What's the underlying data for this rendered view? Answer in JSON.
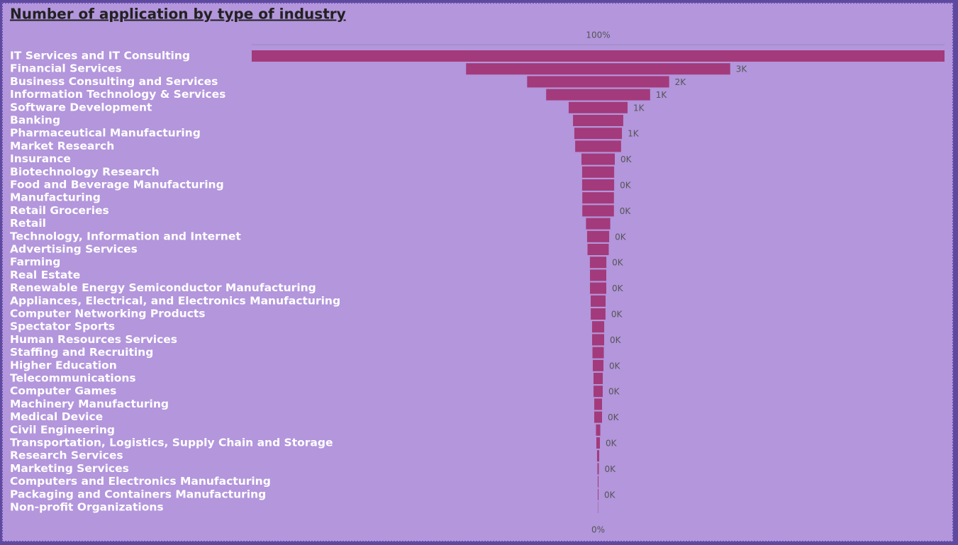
{
  "chart_data": {
    "type": "funnel",
    "title": "Number of application by type of industry",
    "color": "#a33a7b",
    "categories": [
      "IT Services and IT Consulting",
      "Financial Services",
      "Business Consulting and Services",
      "Information Technology & Services",
      "Software Development",
      "Banking",
      "Pharmaceutical Manufacturing",
      "Market Research",
      "Insurance",
      "Biotechnology Research",
      "Food and Beverage Manufacturing",
      "Manufacturing",
      "Retail Groceries",
      "Retail",
      "Technology, Information and Internet",
      "Advertising Services",
      "Farming",
      "Real Estate",
      "Renewable Energy Semiconductor Manufacturing",
      "Appliances, Electrical, and Electronics Manufacturing",
      "Computer Networking Products",
      "Spectator Sports",
      "Human Resources Services",
      "Staffing and Recruiting",
      "Higher Education",
      "Telecommunications",
      "Computer Games",
      "Machinery Manufacturing",
      "Medical Device",
      "Civil Engineering",
      "Transportation, Logistics, Supply Chain and Storage",
      "Research Services",
      "Marketing Services",
      "Computers and Electronics Manufacturing",
      "Packaging and Containers Manufacturing",
      "Non-profit Organizations"
    ],
    "values": [
      8000,
      3050,
      1640,
      1200,
      680,
      580,
      550,
      530,
      385,
      370,
      370,
      365,
      365,
      280,
      255,
      245,
      190,
      188,
      188,
      172,
      170,
      140,
      139,
      131,
      123,
      107,
      106,
      90,
      90,
      50,
      41,
      25,
      16,
      9,
      8,
      3
    ],
    "value_labels": [
      null,
      "3K",
      "2K",
      "1K",
      "1K",
      null,
      "1K",
      null,
      "0K",
      null,
      "0K",
      null,
      "0K",
      null,
      "0K",
      null,
      "0K",
      null,
      "0K",
      null,
      "0K",
      null,
      "0K",
      null,
      "0K",
      null,
      "0K",
      null,
      "0K",
      null,
      "0K",
      null,
      "0K",
      null,
      "0K",
      null
    ],
    "percent_axis": [
      {
        "value": 100,
        "label": "100%"
      },
      {
        "value": 0,
        "label": "0%"
      }
    ]
  }
}
